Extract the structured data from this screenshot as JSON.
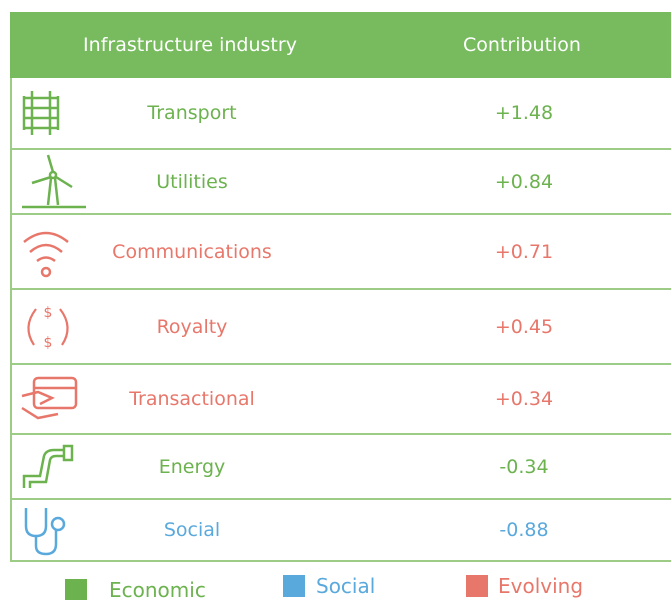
{
  "header": {
    "industry": "Infrastructure industry",
    "contribution": "Contribution"
  },
  "rows": [
    {
      "label": "Transport",
      "contribution": "+1.48",
      "group": "Economic"
    },
    {
      "label": "Utilities",
      "contribution": "+0.84",
      "group": "Economic"
    },
    {
      "label": "Communications",
      "contribution": "+0.71",
      "group": "Evolving"
    },
    {
      "label": "Royalty",
      "contribution": "+0.45",
      "group": "Evolving"
    },
    {
      "label": "Transactional",
      "contribution": "+0.34",
      "group": "Evolving"
    },
    {
      "label": "Energy",
      "contribution": "-0.34",
      "group": "Economic"
    },
    {
      "label": "Social",
      "contribution": "-0.88",
      "group": "Social"
    }
  ],
  "legend": [
    {
      "label": "Economic",
      "color": "#6cb24f"
    },
    {
      "label": "Social",
      "color": "#5aa9dc"
    },
    {
      "label": "Evolving",
      "color": "#e8776b"
    }
  ]
}
